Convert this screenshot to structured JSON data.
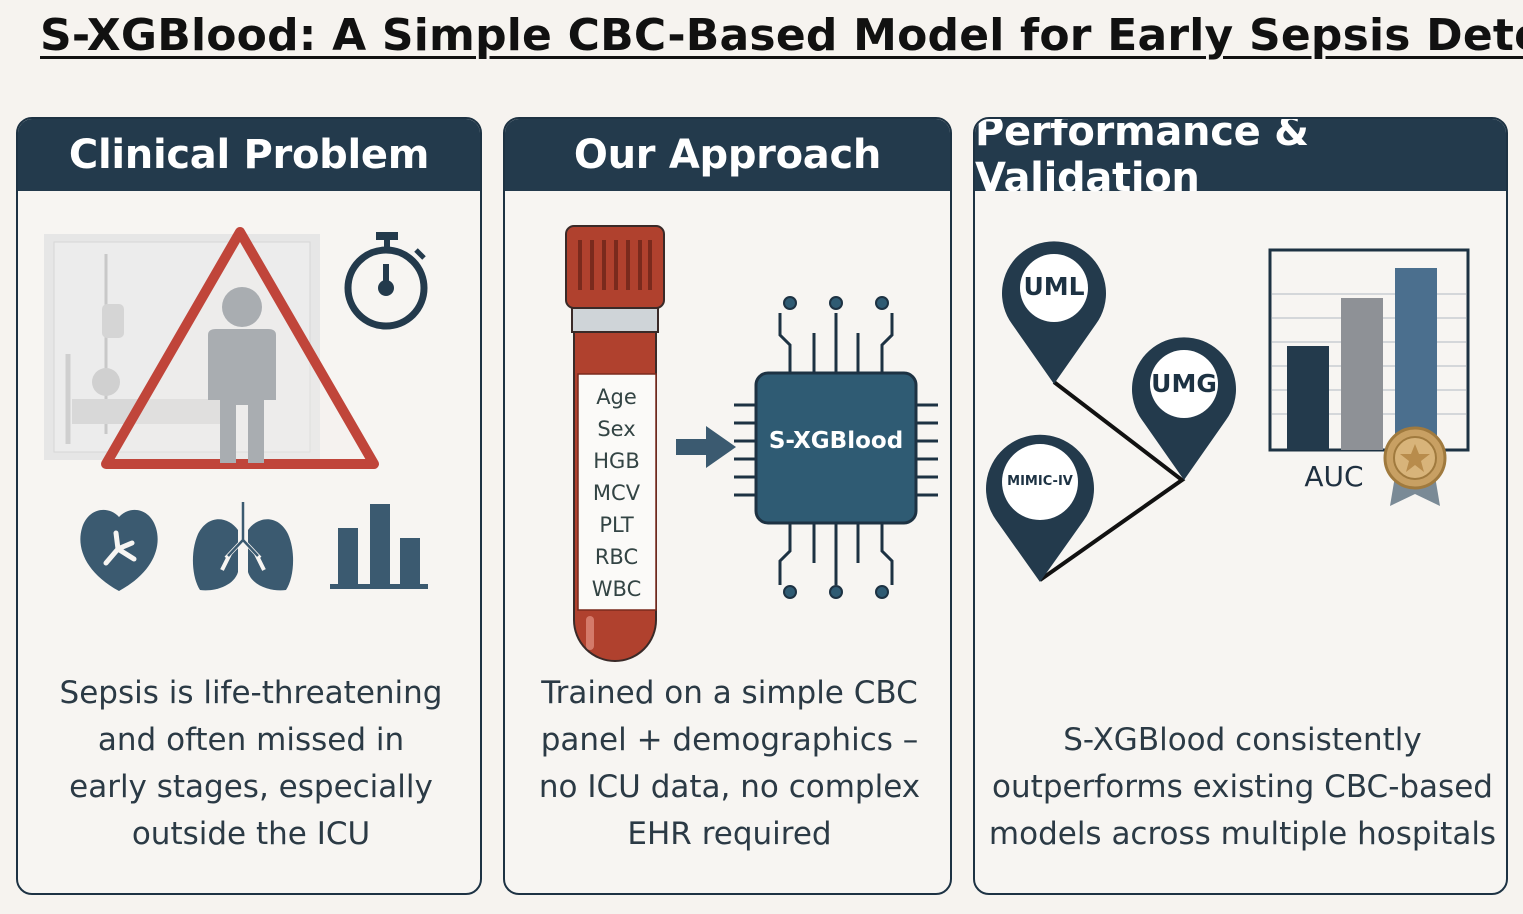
{
  "title": "S-XGBlood: A Simple CBC-Based Model for Early Sepsis Detect",
  "panels": [
    {
      "heading": "Clinical Problem",
      "text_lines": [
        "Sepsis is life-threatening",
        "and often missed in",
        "early stages, especially",
        "outside the ICU"
      ],
      "icons": [
        "hospital-bed-icon",
        "warning-triangle-icon",
        "person-icon",
        "stopwatch-icon",
        "kidney-icon",
        "lungs-icon",
        "bar-chart-icon"
      ]
    },
    {
      "heading": "Our Approach",
      "tube_inputs": [
        "Age",
        "Sex",
        "HGB",
        "MCV",
        "PLT",
        "RBC",
        "WBC"
      ],
      "model_name": "S-XGBlood",
      "text_lines": [
        "Trained on a simple CBC",
        "panel + demographics –",
        "no ICU data, no complex",
        "EHR required"
      ],
      "icons": [
        "blood-tube-icon",
        "arrow-right-icon",
        "chip-icon"
      ]
    },
    {
      "heading": "Performance & Validation",
      "sites": [
        "UML",
        "UMG",
        "MIMIC-IV"
      ],
      "chart_label": "AUC",
      "text_lines": [
        "S-XGBlood consistently",
        "outperforms existing CBC-based",
        "models across multiple hospitals"
      ],
      "icons": [
        "location-pin-icon",
        "bar-chart-icon",
        "award-medal-icon"
      ]
    }
  ],
  "colors": {
    "navy": "#233a4c",
    "teal": "#2f5b73",
    "blood_red": "#b0412e",
    "warning_red": "#c0453a",
    "slate_blue": "#4b6f8e",
    "gray": "#8e9196",
    "gold": "#c8a063"
  }
}
